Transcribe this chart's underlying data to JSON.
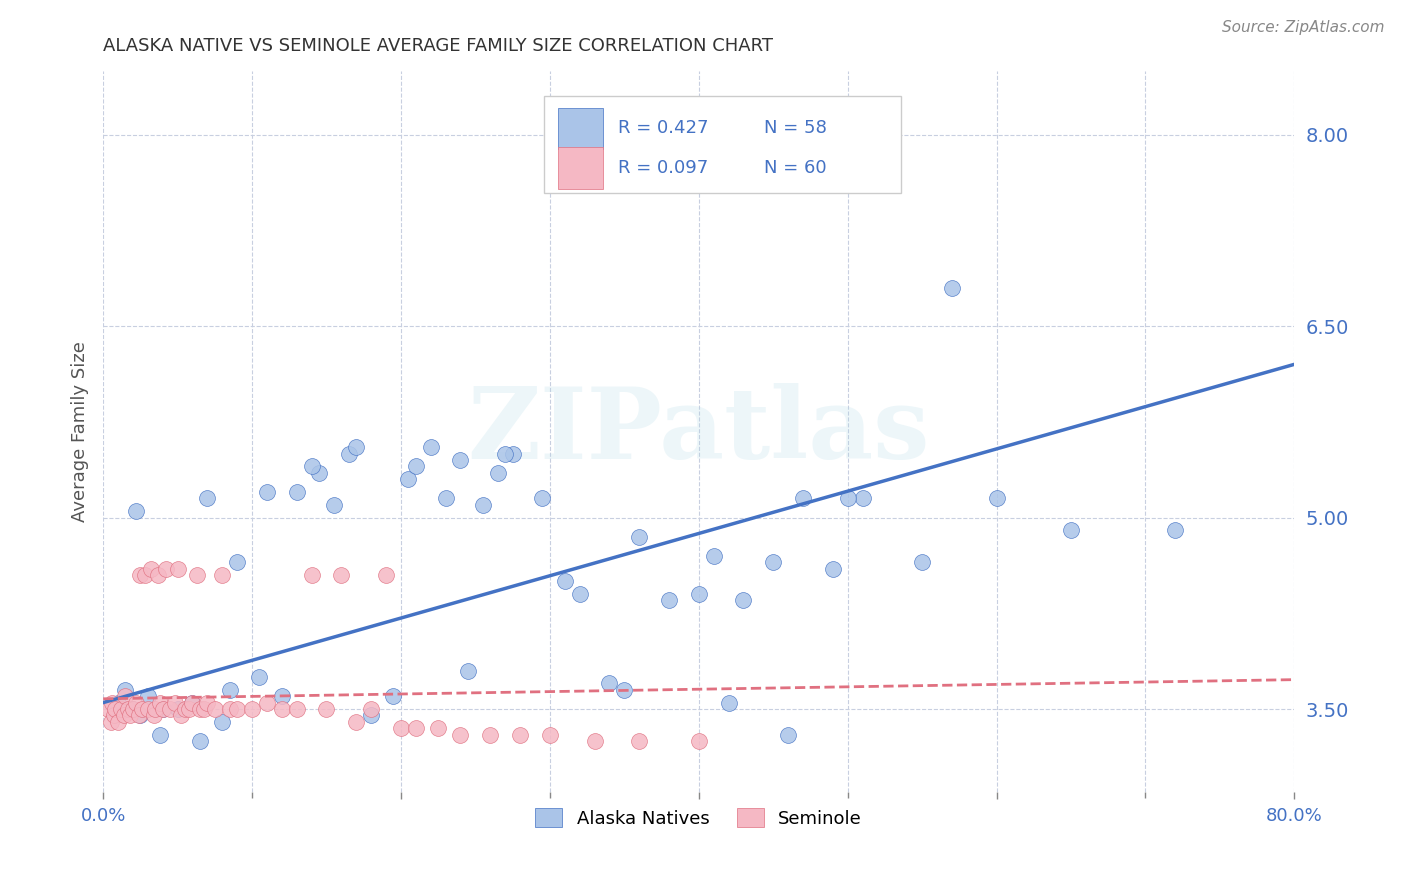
{
  "title": "ALASKA NATIVE VS SEMINOLE AVERAGE FAMILY SIZE CORRELATION CHART",
  "source": "Source: ZipAtlas.com",
  "ylabel": "Average Family Size",
  "xlim": [
    0.0,
    80.0
  ],
  "ylim": [
    2.85,
    8.5
  ],
  "yticks": [
    3.5,
    5.0,
    6.5,
    8.0
  ],
  "xticks_major": [
    0.0,
    20.0,
    40.0,
    60.0,
    80.0
  ],
  "xticks_minor": [
    10.0,
    30.0,
    50.0,
    70.0
  ],
  "background_color": "#ffffff",
  "alaska_fill_color": "#aac4e8",
  "alaska_edge_color": "#4472c4",
  "seminole_fill_color": "#f5b8c4",
  "seminole_edge_color": "#e07080",
  "axis_tick_color": "#4472c4",
  "ylabel_color": "#555555",
  "title_color": "#333333",
  "source_color": "#888888",
  "grid_color": "#c8cfe0",
  "alaska_trend_color": "#4472c4",
  "seminole_trend_color": "#e07080",
  "legend_border_color": "#cccccc",
  "legend_text_color": "#4472c4",
  "watermark_color": "#add8e6",
  "legend_label_alaska": "Alaska Natives",
  "legend_label_seminole": "Seminole",
  "legend_r_alaska": "R = 0.427",
  "legend_n_alaska": "N = 58",
  "legend_r_seminole": "R = 0.097",
  "legend_n_seminole": "N = 60",
  "alaska_trend_x0": 0.0,
  "alaska_trend_y0": 3.55,
  "alaska_trend_x1": 80.0,
  "alaska_trend_y1": 6.2,
  "seminole_trend_x0": 0.0,
  "seminole_trend_y0": 3.58,
  "seminole_trend_x1": 80.0,
  "seminole_trend_y1": 3.73,
  "alaska_scatter_x": [
    1.0,
    1.5,
    2.0,
    2.5,
    3.0,
    4.0,
    5.0,
    6.0,
    7.0,
    8.5,
    9.0,
    10.5,
    12.0,
    13.0,
    14.5,
    15.5,
    16.5,
    18.0,
    19.5,
    20.5,
    22.0,
    23.0,
    24.5,
    25.5,
    26.5,
    27.5,
    29.5,
    32.0,
    34.0,
    36.0,
    38.0,
    40.0,
    41.0,
    43.0,
    45.0,
    47.0,
    49.0,
    51.0,
    55.0,
    60.0,
    65.0,
    72.0,
    2.2,
    3.8,
    6.5,
    8.0,
    11.0,
    14.0,
    17.0,
    21.0,
    24.0,
    27.0,
    31.0,
    35.0,
    42.0,
    46.0,
    50.0,
    57.0
  ],
  "alaska_scatter_y": [
    3.55,
    3.65,
    3.5,
    3.45,
    3.6,
    3.5,
    3.5,
    3.55,
    5.15,
    3.65,
    4.65,
    3.75,
    3.6,
    5.2,
    5.35,
    5.1,
    5.5,
    3.45,
    3.6,
    5.3,
    5.55,
    5.15,
    3.8,
    5.1,
    5.35,
    5.5,
    5.15,
    4.4,
    3.7,
    4.85,
    4.35,
    4.4,
    4.7,
    4.35,
    4.65,
    5.15,
    4.6,
    5.15,
    4.65,
    5.15,
    4.9,
    4.9,
    5.05,
    3.3,
    3.25,
    3.4,
    5.2,
    5.4,
    5.55,
    5.4,
    5.45,
    5.5,
    4.5,
    3.65,
    3.55,
    3.3,
    5.15,
    6.8
  ],
  "seminole_scatter_x": [
    0.3,
    0.5,
    0.6,
    0.7,
    0.8,
    1.0,
    1.2,
    1.4,
    1.5,
    1.7,
    1.8,
    2.0,
    2.2,
    2.4,
    2.5,
    2.6,
    2.8,
    3.0,
    3.2,
    3.4,
    3.5,
    3.7,
    3.8,
    4.0,
    4.2,
    4.5,
    4.8,
    5.0,
    5.2,
    5.5,
    5.8,
    6.0,
    6.3,
    6.5,
    6.8,
    7.0,
    7.5,
    8.0,
    8.5,
    9.0,
    10.0,
    11.0,
    12.0,
    13.0,
    14.0,
    15.0,
    16.0,
    17.0,
    18.0,
    19.0,
    20.0,
    21.0,
    22.5,
    24.0,
    26.0,
    28.0,
    30.0,
    33.0,
    36.0,
    40.0
  ],
  "seminole_scatter_y": [
    3.5,
    3.4,
    3.55,
    3.45,
    3.5,
    3.4,
    3.5,
    3.45,
    3.6,
    3.5,
    3.45,
    3.5,
    3.55,
    3.45,
    4.55,
    3.5,
    4.55,
    3.5,
    4.6,
    3.45,
    3.5,
    4.55,
    3.55,
    3.5,
    4.6,
    3.5,
    3.55,
    4.6,
    3.45,
    3.5,
    3.5,
    3.55,
    4.55,
    3.5,
    3.5,
    3.55,
    3.5,
    4.55,
    3.5,
    3.5,
    3.5,
    3.55,
    3.5,
    3.5,
    4.55,
    3.5,
    4.55,
    3.4,
    3.5,
    4.55,
    3.35,
    3.35,
    3.35,
    3.3,
    3.3,
    3.3,
    3.3,
    3.25,
    3.25,
    3.25
  ]
}
